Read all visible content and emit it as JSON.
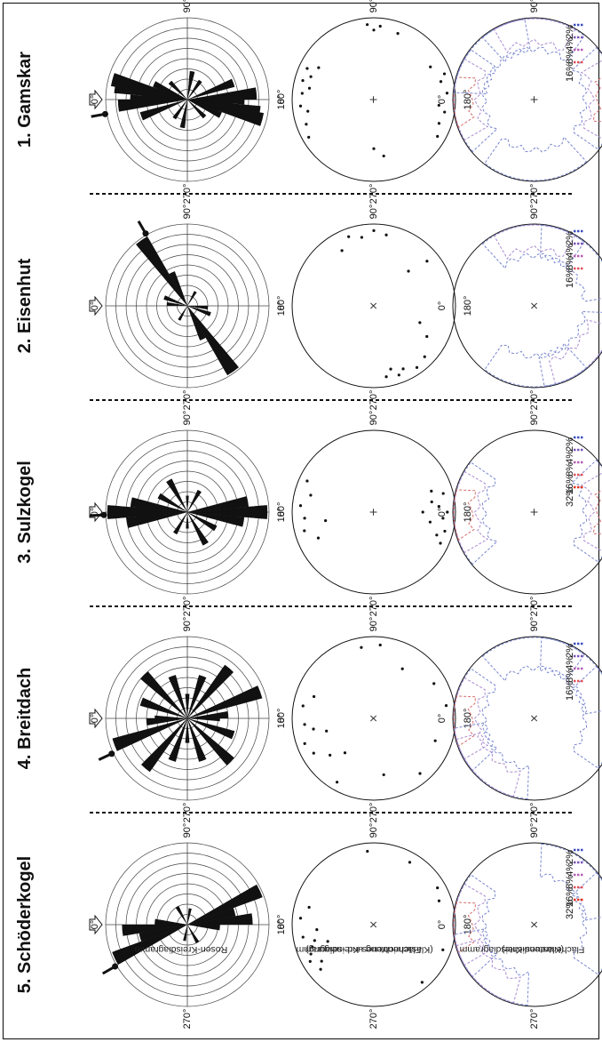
{
  "figure": {
    "row_labels": [
      {
        "id": "rose",
        "lines": [
          "Rosen-Kreisdiagramm"
        ]
      },
      {
        "id": "pole",
        "lines": [
          "Flächentreues-Kreisdiagramm",
          "(Klastenrichtung und -neigung)"
        ]
      },
      {
        "id": "density",
        "lines": [
          "Flächentreues-Kreisdiagramm",
          "(Klastendichte)"
        ]
      }
    ],
    "sites": [
      {
        "title": "1. Gamskar",
        "azimuth_labels": {
          "a0": "0°",
          "a90": "90°",
          "a180": "180°",
          "a270": "270°"
        },
        "center_marker": "+",
        "rose_bins": [
          {
            "dir": 5,
            "len": 0.55
          },
          {
            "dir": 15,
            "len": 0.95
          },
          {
            "dir": 25,
            "len": 0.45
          },
          {
            "dir": 45,
            "len": 0.3
          },
          {
            "dir": 100,
            "len": 0.35
          },
          {
            "dir": 125,
            "len": 0.28
          },
          {
            "dir": 180,
            "len": 0.5
          },
          {
            "dir": 190,
            "len": 0.9
          },
          {
            "dir": 200,
            "len": 0.4
          },
          {
            "dir": 225,
            "len": 0.3
          },
          {
            "dir": 280,
            "len": 0.32
          },
          {
            "dir": 305,
            "len": 0.25
          },
          {
            "dir": 340,
            "len": 0.6
          },
          {
            "dir": 355,
            "len": 0.85
          },
          {
            "dir": 0,
            "len": 0.7
          }
        ],
        "main_arrow_dir": 350,
        "pole_points": [
          [
            5,
            0.88
          ],
          [
            10,
            0.8
          ],
          [
            15,
            0.9
          ],
          [
            20,
            0.82
          ],
          [
            25,
            0.9
          ],
          [
            30,
            0.78
          ],
          [
            340,
            0.88
          ],
          [
            350,
            0.82
          ],
          [
            355,
            0.9
          ],
          [
            330,
            0.92
          ],
          [
            85,
            0.92
          ],
          [
            90,
            0.85
          ],
          [
            95,
            0.9
          ],
          [
            110,
            0.86
          ],
          [
            150,
            0.8
          ],
          [
            160,
            0.92
          ],
          [
            165,
            0.85
          ],
          [
            175,
            0.9
          ],
          [
            185,
            0.8
          ],
          [
            190,
            0.88
          ],
          [
            200,
            0.85
          ],
          [
            210,
            0.9
          ],
          [
            260,
            0.7
          ],
          [
            270,
            0.6
          ]
        ],
        "legend": [
          "2%",
          "4%",
          "8%",
          "16%"
        ]
      },
      {
        "title": "2. Eisenhut",
        "azimuth_labels": {
          "a0": "0°",
          "a90": "90°",
          "a180": "180°",
          "a270": "270°"
        },
        "center_marker": "×",
        "rose_bins": [
          {
            "dir": 55,
            "len": 0.95
          },
          {
            "dir": 65,
            "len": 0.4
          },
          {
            "dir": 20,
            "len": 0.3
          },
          {
            "dir": 5,
            "len": 0.25
          },
          {
            "dir": 235,
            "len": 0.98
          },
          {
            "dir": 245,
            "len": 0.45
          },
          {
            "dir": 200,
            "len": 0.3
          },
          {
            "dir": 185,
            "len": 0.25
          },
          {
            "dir": 120,
            "len": 0.2
          },
          {
            "dir": 300,
            "len": 0.2
          }
        ],
        "main_arrow_dir": 60,
        "pole_points": [
          [
            70,
            0.9
          ],
          [
            80,
            0.85
          ],
          [
            90,
            0.92
          ],
          [
            100,
            0.88
          ],
          [
            60,
            0.78
          ],
          [
            135,
            0.6
          ],
          [
            225,
            0.88
          ],
          [
            235,
            0.92
          ],
          [
            245,
            0.85
          ],
          [
            250,
            0.9
          ],
          [
            255,
            0.8
          ],
          [
            260,
            0.88
          ],
          [
            200,
            0.6
          ],
          [
            210,
            0.75
          ],
          [
            140,
            0.85
          ]
        ],
        "legend": [
          "2%",
          "4%",
          "8%",
          "16%"
        ]
      },
      {
        "title": "3. Sulzkogel",
        "azimuth_labels": {
          "a0": "0°",
          "a90": "90°",
          "a180": "180°",
          "a270": "270°"
        },
        "center_marker": "+",
        "rose_bins": [
          {
            "dir": 0,
            "len": 0.95
          },
          {
            "dir": 10,
            "len": 0.6
          },
          {
            "dir": 350,
            "len": 0.75
          },
          {
            "dir": 30,
            "len": 0.4
          },
          {
            "dir": 60,
            "len": 0.45
          },
          {
            "dir": 180,
            "len": 0.98
          },
          {
            "dir": 170,
            "len": 0.6
          },
          {
            "dir": 190,
            "len": 0.7
          },
          {
            "dir": 210,
            "len": 0.4
          },
          {
            "dir": 240,
            "len": 0.45
          },
          {
            "dir": 120,
            "len": 0.3
          },
          {
            "dir": 300,
            "len": 0.3
          },
          {
            "dir": 90,
            "len": 0.2
          },
          {
            "dir": 270,
            "len": 0.2
          }
        ],
        "main_arrow_dir": 358,
        "pole_points": [
          [
            5,
            0.9
          ],
          [
            355,
            0.85
          ],
          [
            345,
            0.88
          ],
          [
            15,
            0.8
          ],
          [
            25,
            0.9
          ],
          [
            335,
            0.75
          ],
          [
            175,
            0.8
          ],
          [
            180,
            0.9
          ],
          [
            185,
            0.85
          ],
          [
            170,
            0.72
          ],
          [
            190,
            0.7
          ],
          [
            195,
            0.9
          ],
          [
            165,
            0.88
          ],
          [
            200,
            0.82
          ],
          [
            205,
            0.9
          ],
          [
            180,
            0.6
          ],
          [
            350,
            0.6
          ],
          [
            160,
            0.75
          ]
        ],
        "legend": [
          "2%",
          "4%",
          "8%",
          "16%",
          "32%"
        ]
      },
      {
        "title": "4. Breitdach",
        "azimuth_labels": {
          "a0": "0°",
          "a90": "90°",
          "a180": "180°",
          "a270": "270°"
        },
        "center_marker": "×",
        "rose_bins": [
          {
            "dir": 340,
            "len": 0.95
          },
          {
            "dir": 355,
            "len": 0.5
          },
          {
            "dir": 20,
            "len": 0.55
          },
          {
            "dir": 45,
            "len": 0.75
          },
          {
            "dir": 70,
            "len": 0.5
          },
          {
            "dir": 110,
            "len": 0.55
          },
          {
            "dir": 130,
            "len": 0.8
          },
          {
            "dir": 160,
            "len": 0.85
          },
          {
            "dir": 200,
            "len": 0.6
          },
          {
            "dir": 225,
            "len": 0.7
          },
          {
            "dir": 250,
            "len": 0.55
          },
          {
            "dir": 290,
            "len": 0.5
          },
          {
            "dir": 310,
            "len": 0.75
          },
          {
            "dir": 180,
            "len": 0.4
          },
          {
            "dir": 90,
            "len": 0.3
          }
        ],
        "main_arrow_dir": 335,
        "pole_points": [
          [
            330,
            0.85
          ],
          [
            340,
            0.9
          ],
          [
            350,
            0.75
          ],
          [
            320,
            0.7
          ],
          [
            10,
            0.88
          ],
          [
            20,
            0.78
          ],
          [
            300,
            0.9
          ],
          [
            345,
            0.6
          ],
          [
            355,
            0.85
          ],
          [
            80,
            0.88
          ],
          [
            95,
            0.9
          ],
          [
            120,
            0.7
          ],
          [
            150,
            0.85
          ],
          [
            170,
            0.9
          ],
          [
            200,
            0.8
          ],
          [
            230,
            0.88
          ],
          [
            260,
            0.7
          ],
          [
            310,
            0.55
          ]
        ],
        "legend": [
          "2%",
          "4%",
          "8%",
          "16%"
        ]
      },
      {
        "title": "5. Schöderkogel",
        "azimuth_labels": {
          "a0": "0°",
          "a90": "90°",
          "a180": "180°",
          "a270": "270°"
        },
        "center_marker": "×",
        "rose_bins": [
          {
            "dir": 335,
            "len": 0.95
          },
          {
            "dir": 345,
            "len": 0.55
          },
          {
            "dir": 355,
            "len": 0.75
          },
          {
            "dir": 5,
            "len": 0.35
          },
          {
            "dir": 155,
            "len": 0.98
          },
          {
            "dir": 165,
            "len": 0.6
          },
          {
            "dir": 175,
            "len": 0.8
          },
          {
            "dir": 185,
            "len": 0.4
          },
          {
            "dir": 240,
            "len": 0.25
          },
          {
            "dir": 60,
            "len": 0.25
          },
          {
            "dir": 100,
            "len": 0.2
          },
          {
            "dir": 280,
            "len": 0.2
          }
        ],
        "main_arrow_dir": 330,
        "pole_points": [
          [
            330,
            0.9
          ],
          [
            335,
            0.85
          ],
          [
            340,
            0.8
          ],
          [
            345,
            0.75
          ],
          [
            350,
            0.88
          ],
          [
            355,
            0.7
          ],
          [
            325,
            0.78
          ],
          [
            320,
            0.85
          ],
          [
            5,
            0.9
          ],
          [
            15,
            0.82
          ],
          [
            340,
            0.6
          ],
          [
            150,
            0.9
          ],
          [
            160,
            0.85
          ],
          [
            120,
            0.88
          ],
          [
            85,
            0.9
          ],
          [
            230,
            0.92
          ],
          [
            200,
            0.9
          ]
        ],
        "legend": [
          "2%",
          "4%",
          "8%",
          "16%",
          "32%"
        ]
      }
    ],
    "colors": {
      "ink": "#111111",
      "grid": "#444444",
      "legend": [
        "#3b4fbf",
        "#7b55b8",
        "#b35fb4",
        "#e0505a",
        "#e8321e"
      ],
      "contours": [
        "#7a87cf",
        "#a98ad0",
        "#d56b6b"
      ]
    }
  }
}
